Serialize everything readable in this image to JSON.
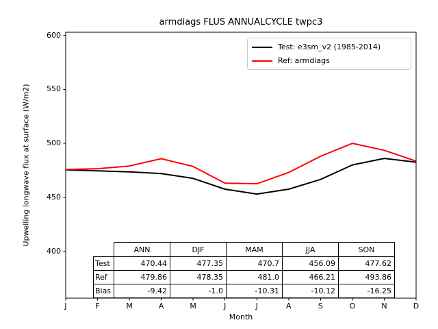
{
  "chart_data": {
    "type": "line",
    "title": "armdiags FLUS ANNUALCYCLE twpc3",
    "xlabel": "Month",
    "ylabel": "Upwelling longwave flux at surface (W/m2)",
    "x": [
      "J",
      "F",
      "M",
      "A",
      "M",
      "J",
      "J",
      "A",
      "S",
      "O",
      "N",
      "D"
    ],
    "yticks": [
      400,
      450,
      500,
      550,
      600
    ],
    "ylim": [
      356,
      604
    ],
    "grid": false,
    "legend_position": "upper right",
    "series": [
      {
        "name": "Test: e3sm_v2 (1985-2014)",
        "color": "#000000",
        "values": [
          475.5,
          474.5,
          473.5,
          472,
          467.5,
          457.5,
          453,
          457.5,
          466.5,
          480,
          486,
          482.5
        ]
      },
      {
        "name": "Ref: armdiags",
        "color": "#ff0000",
        "values": [
          475.7,
          476.5,
          479,
          485.8,
          478.5,
          463,
          462.5,
          473,
          488,
          500,
          493.5,
          483.5
        ]
      }
    ],
    "table": {
      "columns": [
        "ANN",
        "DJF",
        "MAM",
        "JJA",
        "SON"
      ],
      "rows": [
        {
          "label": "Test",
          "values": [
            "470.44",
            "477.35",
            "470.7",
            "456.09",
            "477.62"
          ]
        },
        {
          "label": "Ref",
          "values": [
            "479.86",
            "478.35",
            "481.0",
            "466.21",
            "493.86"
          ]
        },
        {
          "label": "Bias",
          "values": [
            "-9.42",
            "-1.0",
            "-10.31",
            "-10.12",
            "-16.25"
          ]
        }
      ]
    }
  }
}
